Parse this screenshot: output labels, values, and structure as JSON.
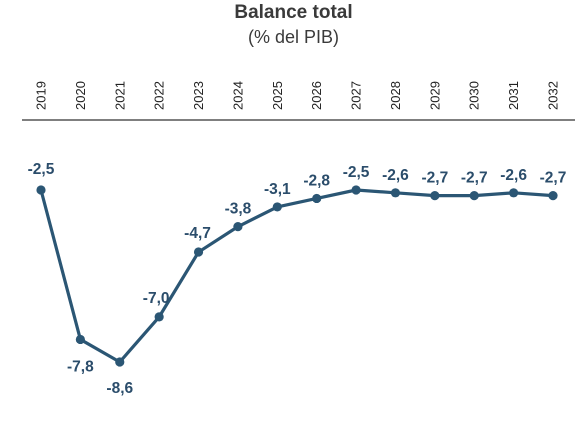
{
  "chart_data": {
    "type": "line",
    "title": "Balance total",
    "subtitle": "(% del PIB)",
    "xlabel": "",
    "ylabel": "",
    "categories": [
      "2019",
      "2020",
      "2021",
      "2022",
      "2023",
      "2024",
      "2025",
      "2026",
      "2027",
      "2028",
      "2029",
      "2030",
      "2031",
      "2032"
    ],
    "series": [
      {
        "values": [
          -2.5,
          -7.8,
          -8.6,
          -7.0,
          -4.7,
          -3.8,
          -3.1,
          -2.8,
          -2.5,
          -2.6,
          -2.7,
          -2.7,
          -2.6,
          -2.7
        ]
      }
    ],
    "data_labels": [
      "-2,5",
      "-7,8",
      "-8,6",
      "-7,0",
      "-4,7",
      "-3,8",
      "-3,1",
      "-2,8",
      "-2,5",
      "-2,6",
      "-2,7",
      "-2,7",
      "-2,6",
      "-2,7"
    ],
    "ylim": [
      -9,
      -2
    ],
    "grid": false,
    "legend": "none",
    "x_tick_position": "top",
    "x_tick_rotation": "vertical",
    "colors": {
      "line": "#2b5674",
      "marker": "#2b5674",
      "label": "#2b4d6b",
      "axis": "#333333"
    }
  }
}
